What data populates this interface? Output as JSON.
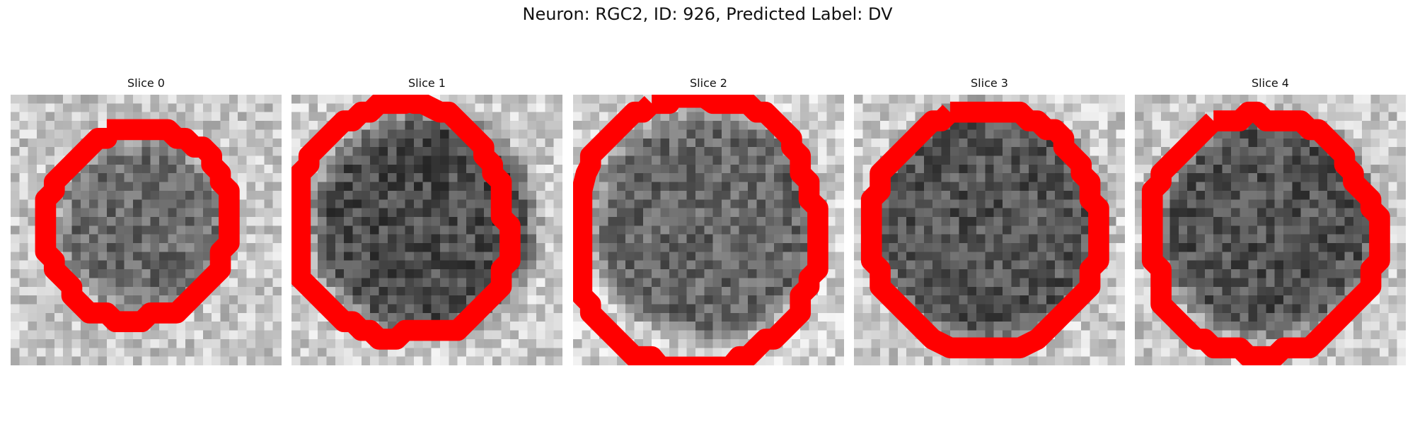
{
  "figure": {
    "title": "Neuron: RGC2, ID: 926, Predicted Label: DV",
    "outline_color": "#ff0000",
    "image_style": "grayscale pixel grid (approx. 31x31 px patch), dark circular cell body surrounded by lighter noisy background"
  },
  "panels": [
    {
      "title": "Slice 0",
      "outline": "roi-contour"
    },
    {
      "title": "Slice 1",
      "outline": "roi-contour"
    },
    {
      "title": "Slice 2",
      "outline": "roi-contour"
    },
    {
      "title": "Slice 3",
      "outline": "roi-contour"
    },
    {
      "title": "Slice 4",
      "outline": "roi-contour"
    }
  ]
}
